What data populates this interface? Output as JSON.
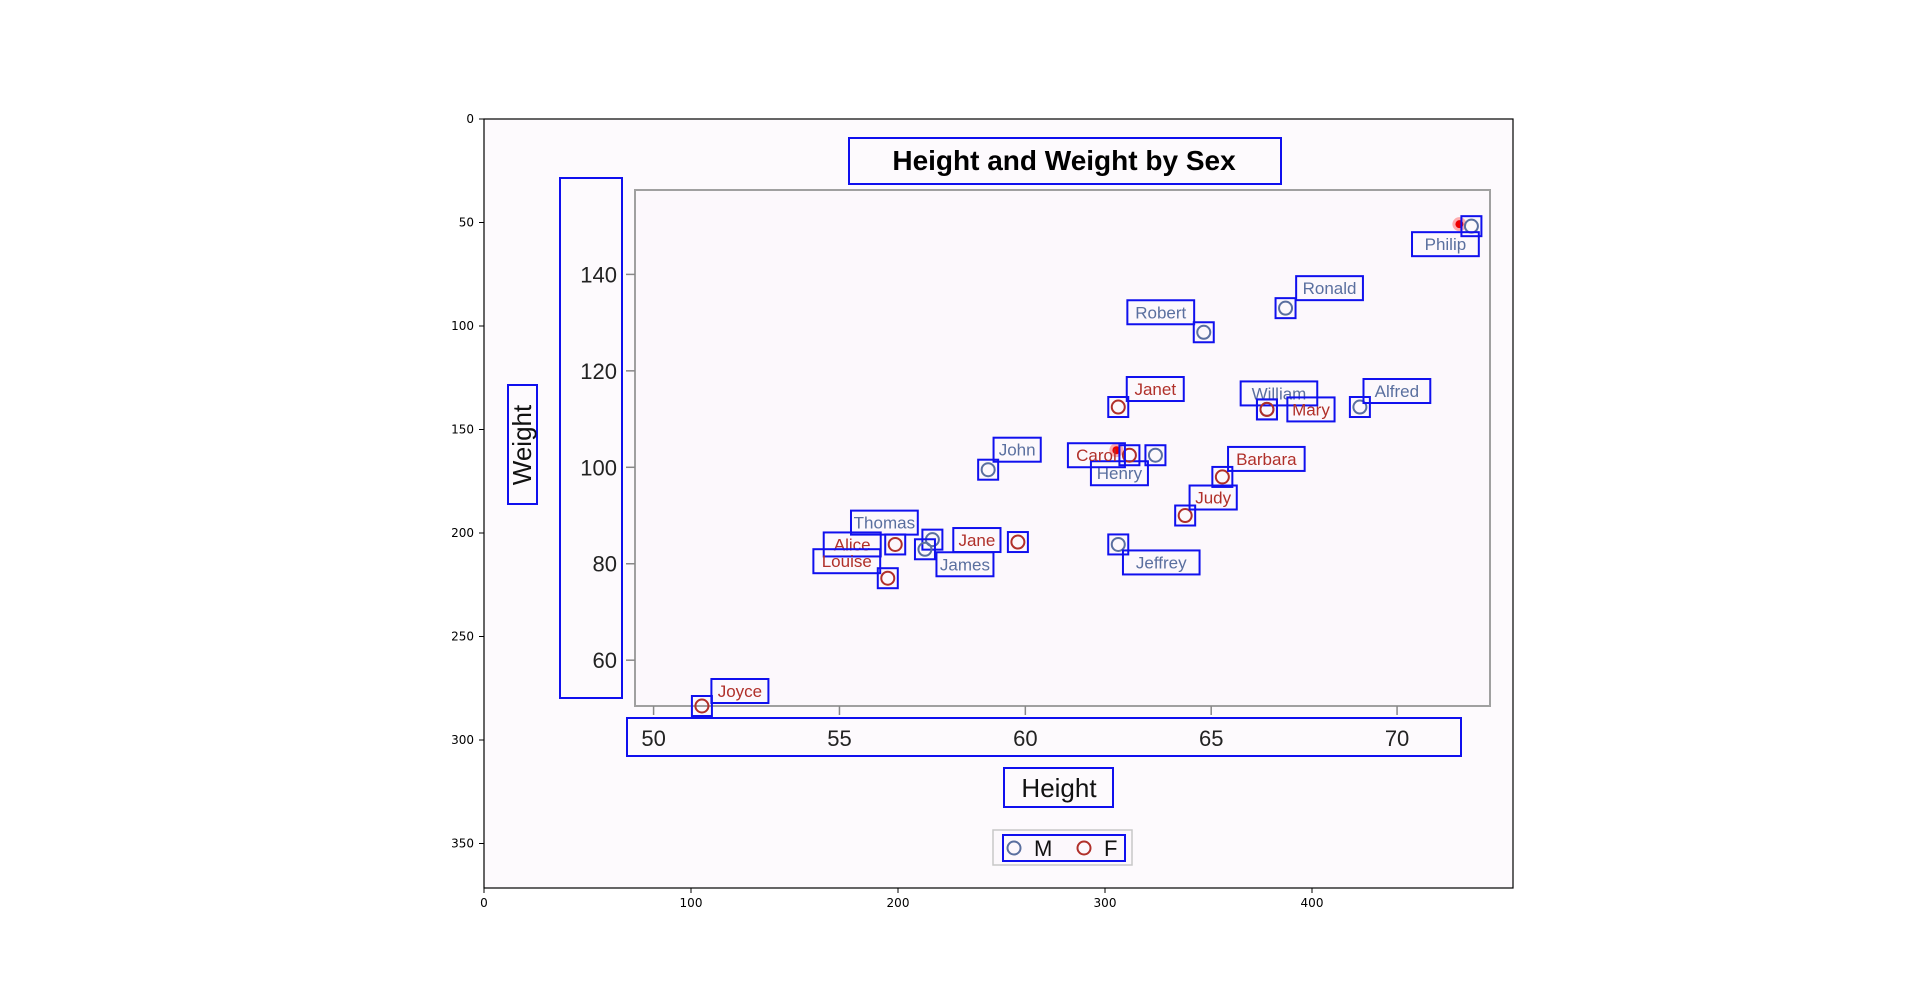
{
  "outer_axes": {
    "x_ticks": [
      "0",
      "100",
      "200",
      "300",
      "400"
    ],
    "y_ticks": [
      "0",
      "50",
      "100",
      "150",
      "200",
      "250",
      "300",
      "350"
    ]
  },
  "chart_data": {
    "type": "scatter",
    "title": "Height and Weight by Sex",
    "xlabel": "Height",
    "ylabel": "Weight",
    "xlim": [
      49.5,
      72.5
    ],
    "ylim": [
      50.5,
      157.5
    ],
    "x_ticks": [
      "50",
      "55",
      "60",
      "65",
      "70"
    ],
    "y_ticks": [
      "60",
      "80",
      "100",
      "120",
      "140"
    ],
    "legend_position": "bottom",
    "colors": {
      "M": "#5a6f9f",
      "F": "#b0302a",
      "box": "#1010ee",
      "highlight": "#ee0000"
    },
    "series": [
      {
        "name": "M",
        "points": [
          {
            "label": "Philip",
            "x": 72.0,
            "y": 150.0
          },
          {
            "label": "Ronald",
            "x": 67.0,
            "y": 133.0
          },
          {
            "label": "Robert",
            "x": 64.8,
            "y": 128.0
          },
          {
            "label": "William",
            "x": 66.5,
            "y": 112.0
          },
          {
            "label": "Alfred",
            "x": 69.0,
            "y": 112.5
          },
          {
            "label": "Henry",
            "x": 63.5,
            "y": 102.5
          },
          {
            "label": "John",
            "x": 59.0,
            "y": 99.5
          },
          {
            "label": "Thomas",
            "x": 57.5,
            "y": 85.0
          },
          {
            "label": "James",
            "x": 57.3,
            "y": 83.0
          },
          {
            "label": "Jeffrey",
            "x": 62.5,
            "y": 84.0
          }
        ]
      },
      {
        "name": "F",
        "points": [
          {
            "label": "Janet",
            "x": 62.5,
            "y": 112.5
          },
          {
            "label": "Mary",
            "x": 66.5,
            "y": 112.0
          },
          {
            "label": "Carol",
            "x": 62.8,
            "y": 102.5
          },
          {
            "label": "Barbara",
            "x": 65.3,
            "y": 98.0
          },
          {
            "label": "Judy",
            "x": 64.3,
            "y": 90.0
          },
          {
            "label": "Alice",
            "x": 56.5,
            "y": 84.0
          },
          {
            "label": "Jane",
            "x": 59.8,
            "y": 84.5
          },
          {
            "label": "Louise",
            "x": 56.3,
            "y": 77.0
          },
          {
            "label": "Joyce",
            "x": 51.3,
            "y": 50.5
          }
        ]
      }
    ]
  }
}
